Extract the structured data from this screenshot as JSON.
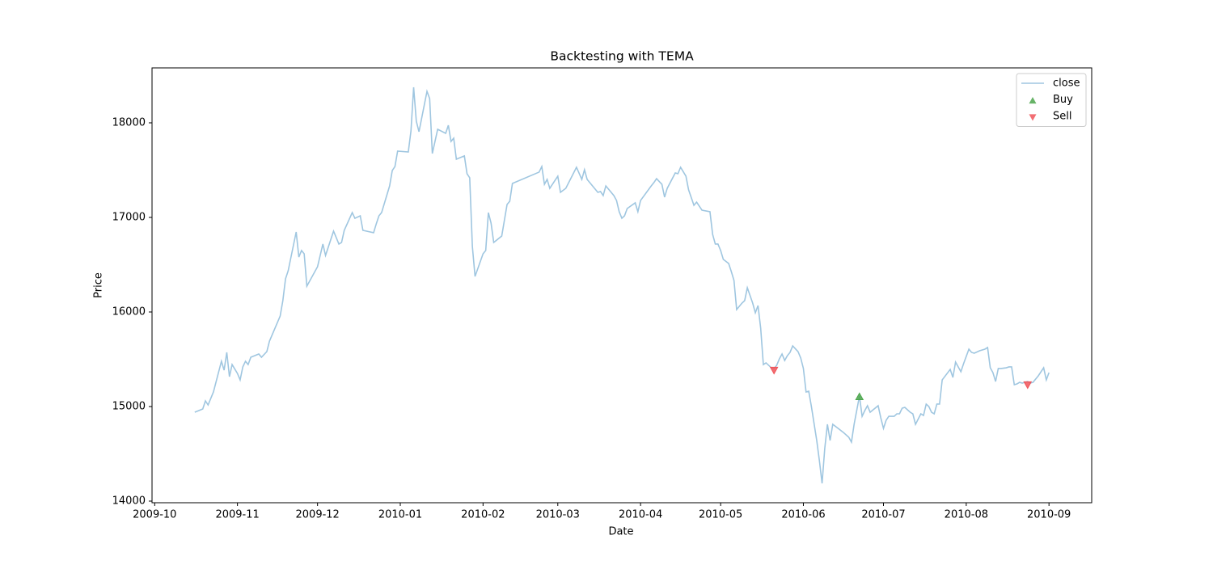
{
  "chart_data": {
    "type": "line",
    "title": "Backtesting with TEMA",
    "xlabel": "Date",
    "ylabel": "Price",
    "xlim": [
      14517,
      14869
    ],
    "xticks": [
      {
        "value": 14518,
        "label": "2009-10"
      },
      {
        "value": 14549,
        "label": "2009-11"
      },
      {
        "value": 14579,
        "label": "2009-12"
      },
      {
        "value": 14610,
        "label": "2010-01"
      },
      {
        "value": 14641,
        "label": "2010-02"
      },
      {
        "value": 14669,
        "label": "2010-03"
      },
      {
        "value": 14700,
        "label": "2010-04"
      },
      {
        "value": 14730,
        "label": "2010-05"
      },
      {
        "value": 14761,
        "label": "2010-06"
      },
      {
        "value": 14791,
        "label": "2010-07"
      },
      {
        "value": 14822,
        "label": "2010-08"
      },
      {
        "value": 14853,
        "label": "2010-09"
      }
    ],
    "ylim": [
      13983,
      18581
    ],
    "yticks": [
      14000,
      15000,
      16000,
      17000,
      18000
    ],
    "legend": "upper right",
    "series": [
      {
        "name": "close",
        "type": "line",
        "color": "#9fc6e0",
        "x": [
          14533,
          14536,
          14537,
          14538,
          14540,
          14543,
          14544,
          14545,
          14546,
          14547,
          14549,
          14550,
          14551,
          14552,
          14553,
          14554,
          14557,
          14558,
          14560,
          14561,
          14565,
          14566,
          14567,
          14568,
          14571,
          14572,
          14573,
          14574,
          14575,
          14579,
          14581,
          14582,
          14585,
          14587,
          14588,
          14589,
          14592,
          14593,
          14595,
          14596,
          14600,
          14601,
          14602,
          14603,
          14606,
          14607,
          14608,
          14609,
          14613,
          14614,
          14615,
          14616,
          14617,
          14620,
          14621,
          14622,
          14624,
          14627,
          14628,
          14629,
          14630,
          14631,
          14634,
          14635,
          14636,
          14637,
          14638,
          14641,
          14642,
          14643,
          14644,
          14645,
          14648,
          14650,
          14651,
          14652,
          14662,
          14663,
          14664,
          14665,
          14666,
          14669,
          14670,
          14672,
          14676,
          14678,
          14679,
          14680,
          14684,
          14685,
          14686,
          14687,
          14690,
          14691,
          14692,
          14693,
          14694,
          14695,
          14698,
          14699,
          14700,
          14704,
          14705,
          14706,
          14708,
          14709,
          14710,
          14713,
          14714,
          14715,
          14717,
          14718,
          14720,
          14721,
          14723,
          14726,
          14727,
          14728,
          14729,
          14730,
          14731,
          14733,
          14734,
          14735,
          14736,
          14738,
          14739,
          14740,
          14742,
          14743,
          14744,
          14745,
          14746,
          14747,
          14749,
          14750,
          14751,
          14752,
          14753,
          14754,
          14755,
          14756,
          14757,
          14759,
          14760,
          14761,
          14762,
          14763,
          14764,
          14766,
          14767,
          14768,
          14769,
          14770,
          14771,
          14772,
          14774,
          14776,
          14778,
          14779,
          14780,
          14782,
          14783,
          14784,
          14785,
          14786,
          14789,
          14790,
          14791,
          14792,
          14793,
          14795,
          14796,
          14797,
          14798,
          14799,
          14801,
          14802,
          14803,
          14805,
          14806,
          14807,
          14808,
          14809,
          14810,
          14811,
          14812,
          14813,
          14816,
          14817,
          14818,
          14820,
          14821,
          14823,
          14824,
          14825,
          14827,
          14829,
          14830,
          14831,
          14832,
          14833,
          14834,
          14835,
          14837,
          14838,
          14839,
          14840,
          14841,
          14842,
          14843,
          14845,
          14846,
          14847,
          14849,
          14851,
          14852,
          14853
        ],
        "values": [
          14940,
          14974,
          15060,
          15017,
          15154,
          15479,
          15385,
          15573,
          15316,
          15444,
          15350,
          15282,
          15419,
          15479,
          15444,
          15521,
          15556,
          15521,
          15581,
          15692,
          15957,
          16120,
          16350,
          16436,
          16846,
          16581,
          16650,
          16615,
          16273,
          16479,
          16718,
          16598,
          16855,
          16718,
          16735,
          16863,
          17051,
          16991,
          17017,
          16863,
          16838,
          16932,
          17017,
          17051,
          17333,
          17496,
          17538,
          17701,
          17692,
          17915,
          18376,
          18017,
          17906,
          18333,
          18256,
          17675,
          17932,
          17889,
          17974,
          17803,
          17838,
          17615,
          17650,
          17462,
          17419,
          16692,
          16376,
          16615,
          16650,
          17051,
          16940,
          16735,
          16803,
          17137,
          17171,
          17359,
          17479,
          17538,
          17350,
          17402,
          17308,
          17436,
          17265,
          17308,
          17530,
          17402,
          17504,
          17402,
          17265,
          17274,
          17231,
          17333,
          17231,
          17179,
          17060,
          16991,
          17017,
          17094,
          17154,
          17060,
          17179,
          17333,
          17368,
          17410,
          17350,
          17214,
          17308,
          17470,
          17462,
          17530,
          17436,
          17291,
          17128,
          17162,
          17077,
          17060,
          16821,
          16718,
          16718,
          16650,
          16556,
          16513,
          16427,
          16333,
          16026,
          16094,
          16120,
          16256,
          16094,
          15991,
          16068,
          15829,
          15444,
          15462,
          15410,
          15402,
          15436,
          15504,
          15556,
          15487,
          15538,
          15573,
          15641,
          15581,
          15513,
          15402,
          15154,
          15162,
          15000,
          14641,
          14427,
          14188,
          14556,
          14812,
          14641,
          14812,
          14769,
          14726,
          14675,
          14624,
          14812,
          15111,
          14897,
          14957,
          15009,
          14940,
          15009,
          14880,
          14769,
          14855,
          14897,
          14897,
          14923,
          14923,
          14983,
          14991,
          14940,
          14923,
          14812,
          14923,
          14906,
          15026,
          15000,
          14940,
          14923,
          15026,
          15026,
          15282,
          15393,
          15308,
          15470,
          15368,
          15453,
          15607,
          15573,
          15564,
          15590,
          15607,
          15624,
          15410,
          15359,
          15265,
          15402,
          15402,
          15410,
          15419,
          15419,
          15231,
          15239,
          15256,
          15248,
          15265,
          15248,
          15256,
          15325,
          15410,
          15282,
          15359
        ]
      },
      {
        "name": "Buy",
        "type": "scatter",
        "marker": "triangle-up",
        "color": "#4ca64c",
        "x": [
          14782
        ],
        "values": [
          15103
        ]
      },
      {
        "name": "Sell",
        "type": "scatter",
        "marker": "triangle-down",
        "color": "#f0555a",
        "x": [
          14750,
          14845
        ],
        "values": [
          15385,
          15231
        ]
      }
    ]
  }
}
